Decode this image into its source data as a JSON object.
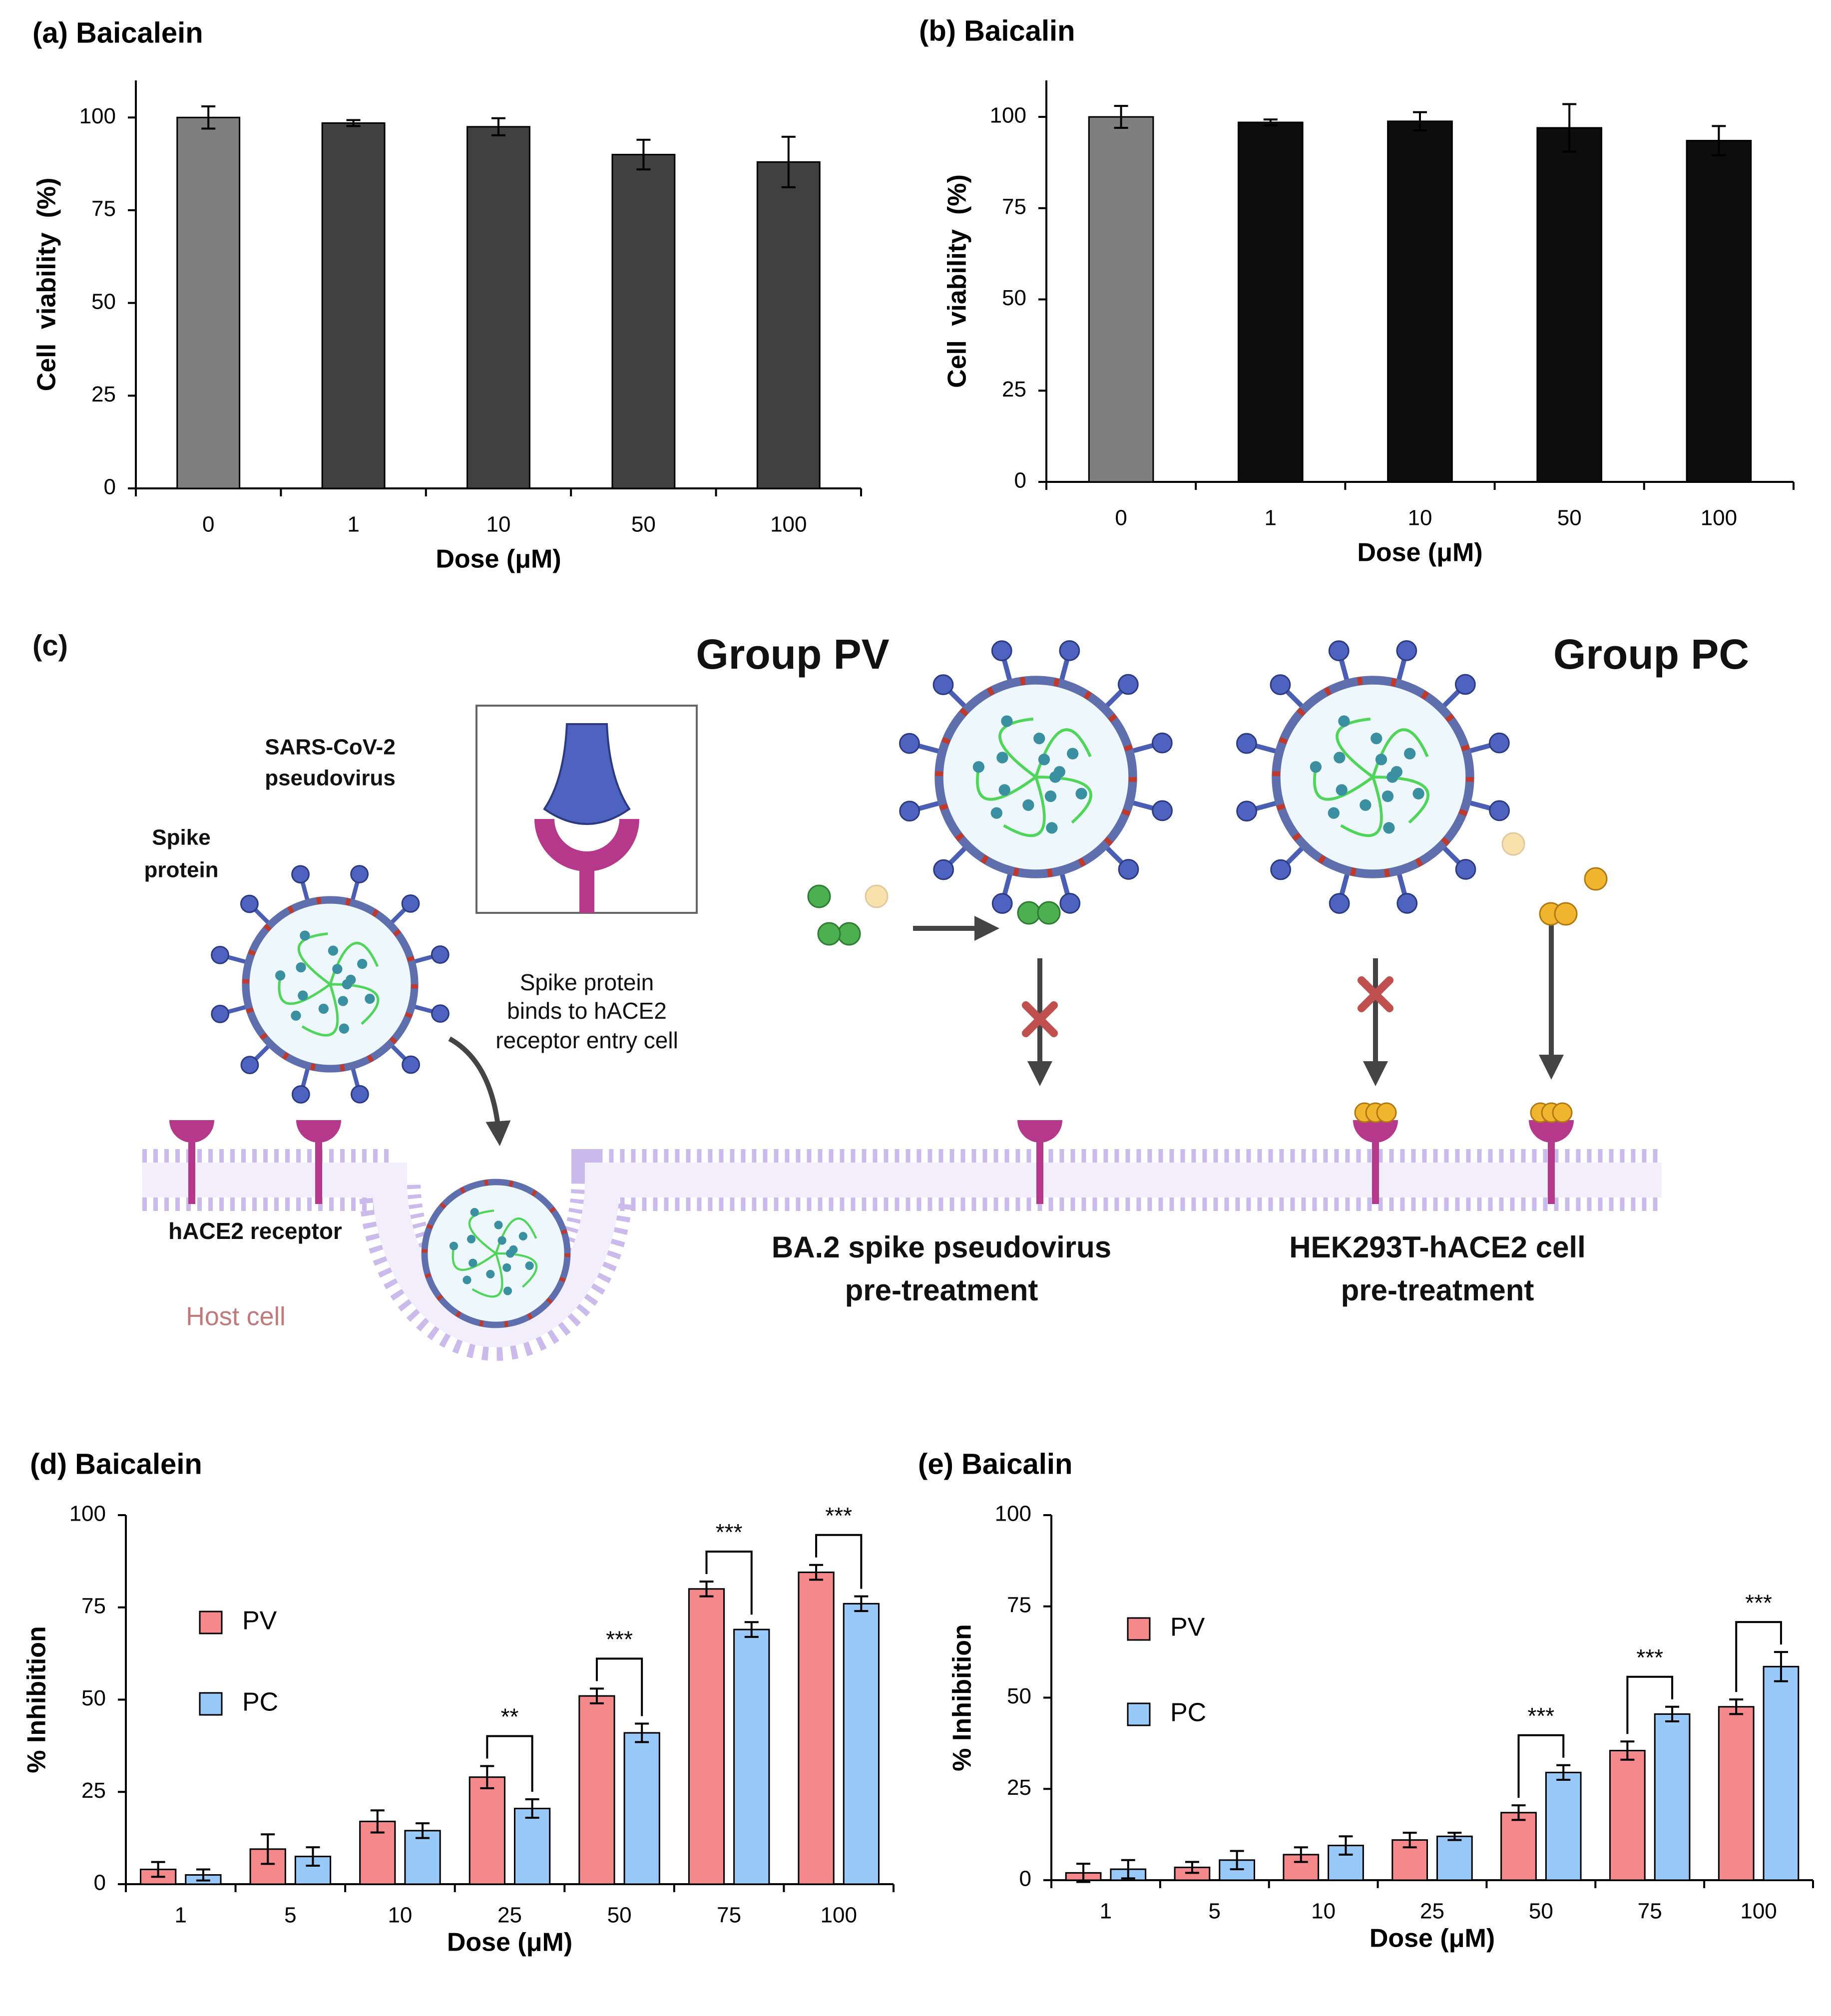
{
  "chart_data": [
    {
      "type": "bar",
      "title": "(a) Baicalein",
      "categories": [
        "0",
        "1",
        "10",
        "50",
        "100"
      ],
      "values": [
        100,
        98.5,
        97.5,
        90,
        88
      ],
      "errors": [
        3,
        0.8,
        2.3,
        4,
        6.8
      ],
      "colors": [
        "#7f7f7f",
        "#404040",
        "#404040",
        "#404040",
        "#404040"
      ],
      "xlabel": "Dose (μM)",
      "ylabel": "Cell  viability  (%)",
      "ylim": [
        0,
        110
      ],
      "yticks": [
        0,
        25,
        50,
        75,
        100
      ]
    },
    {
      "type": "bar",
      "title": "(b) Baicalin",
      "categories": [
        "0",
        "1",
        "10",
        "50",
        "100"
      ],
      "values": [
        100,
        98.5,
        98.8,
        97,
        93.5
      ],
      "errors": [
        3,
        0.8,
        2.5,
        6.5,
        4
      ],
      "colors": [
        "#7f7f7f",
        "#0d0d0d",
        "#0d0d0d",
        "#0d0d0d",
        "#0d0d0d"
      ],
      "xlabel": "Dose (μM)",
      "ylabel": "Cell  viability  (%)",
      "ylim": [
        0,
        110
      ],
      "yticks": [
        0,
        25,
        50,
        75,
        100
      ]
    },
    {
      "type": "bar",
      "title": "(d) Baicalein",
      "categories": [
        "1",
        "5",
        "10",
        "25",
        "50",
        "75",
        "100"
      ],
      "series": [
        {
          "name": "PV",
          "color": "#f4888a",
          "values": [
            4,
            9.5,
            17,
            29,
            51,
            80,
            84.5
          ],
          "errors": [
            2,
            4,
            3,
            3,
            2,
            2,
            2
          ]
        },
        {
          "name": "PC",
          "color": "#99c9f9",
          "values": [
            2.5,
            7.5,
            14.5,
            20.5,
            41,
            69,
            76
          ],
          "errors": [
            1.5,
            2.5,
            2,
            2.5,
            2.5,
            2,
            2
          ]
        }
      ],
      "significance": [
        null,
        null,
        null,
        "**",
        "***",
        "***",
        "***"
      ],
      "xlabel": "Dose (μM)",
      "ylabel": "% Inhibition",
      "ylim": [
        0,
        100
      ],
      "yticks": [
        0,
        25,
        50,
        75,
        100
      ],
      "legend": "upper left"
    },
    {
      "type": "bar",
      "title": "(e) Baicalin",
      "categories": [
        "1",
        "5",
        "10",
        "25",
        "50",
        "75",
        "100"
      ],
      "series": [
        {
          "name": "PV",
          "color": "#f4888a",
          "values": [
            2,
            3.5,
            7,
            11,
            18.5,
            35.5,
            47.5
          ],
          "errors": [
            2.5,
            1.5,
            2,
            2,
            2,
            2.5,
            2
          ]
        },
        {
          "name": "PC",
          "color": "#99c9f9",
          "values": [
            3,
            5.5,
            9.5,
            12,
            29.5,
            45.5,
            58.5
          ],
          "errors": [
            2.5,
            2.5,
            2.5,
            1,
            2,
            2,
            4
          ]
        }
      ],
      "significance": [
        null,
        null,
        null,
        null,
        "***",
        "***",
        "***"
      ],
      "xlabel": "Dose (μM)",
      "ylabel": "% Inhibition",
      "ylim": [
        0,
        100
      ],
      "yticks": [
        0,
        25,
        50,
        75,
        100
      ],
      "legend": "upper left"
    }
  ],
  "diagram": {
    "panel": "(c)",
    "group_pv": "Group PV",
    "group_pc": "Group PC",
    "sars_label": [
      "SARS-CoV-2",
      "pseudovirus"
    ],
    "spike_label": [
      "Spike",
      "protein"
    ],
    "inset_caption": [
      "Spike protein",
      "binds to hACE2",
      "receptor entry cell"
    ],
    "receptor_label": "hACE2 receptor",
    "host_label": "Host cell",
    "pv_caption": [
      "BA.2 spike pseudovirus",
      "pre-treatment"
    ],
    "pc_caption": [
      "HEK293T-hACE2 cell",
      "pre-treatment"
    ]
  }
}
